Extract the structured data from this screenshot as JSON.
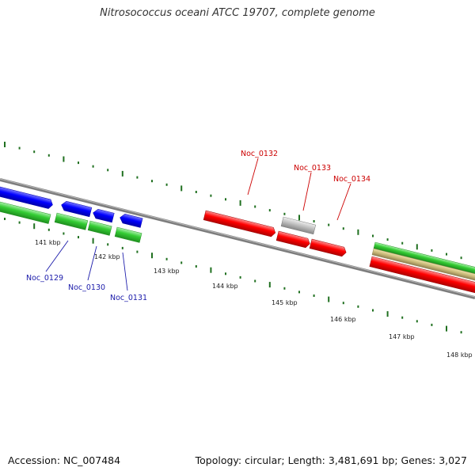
{
  "title": "Nitrosococcus oceani ATCC 19707, complete genome",
  "footer": {
    "accession": "Accession: NC_007484",
    "summary": "Topology: circular; Length: 3,481,691 bp; Genes: 3,027"
  },
  "colors": {
    "backbone": "#888888",
    "ticks": "#207020",
    "blue_genes": "#0000ff",
    "green_genes": "#33cc33",
    "red_genes": "#ff0000",
    "gray_gene": "#bbbbbb",
    "tan_gene": "#c8b878",
    "blue_labels": "#1a1aaa",
    "red_labels": "#cc0000"
  },
  "scale_labels": [
    "141 kbp",
    "142 kbp",
    "143 kbp",
    "144 kbp",
    "145 kbp",
    "146 kbp",
    "147 kbp",
    "148 kbp"
  ],
  "gene_labels": [
    {
      "name": "Noc_0129",
      "color": "blue"
    },
    {
      "name": "Noc_0130",
      "color": "blue"
    },
    {
      "name": "Noc_0131",
      "color": "blue"
    },
    {
      "name": "Noc_0132",
      "color": "red"
    },
    {
      "name": "Noc_0133",
      "color": "red"
    },
    {
      "name": "Noc_0134",
      "color": "red"
    }
  ]
}
